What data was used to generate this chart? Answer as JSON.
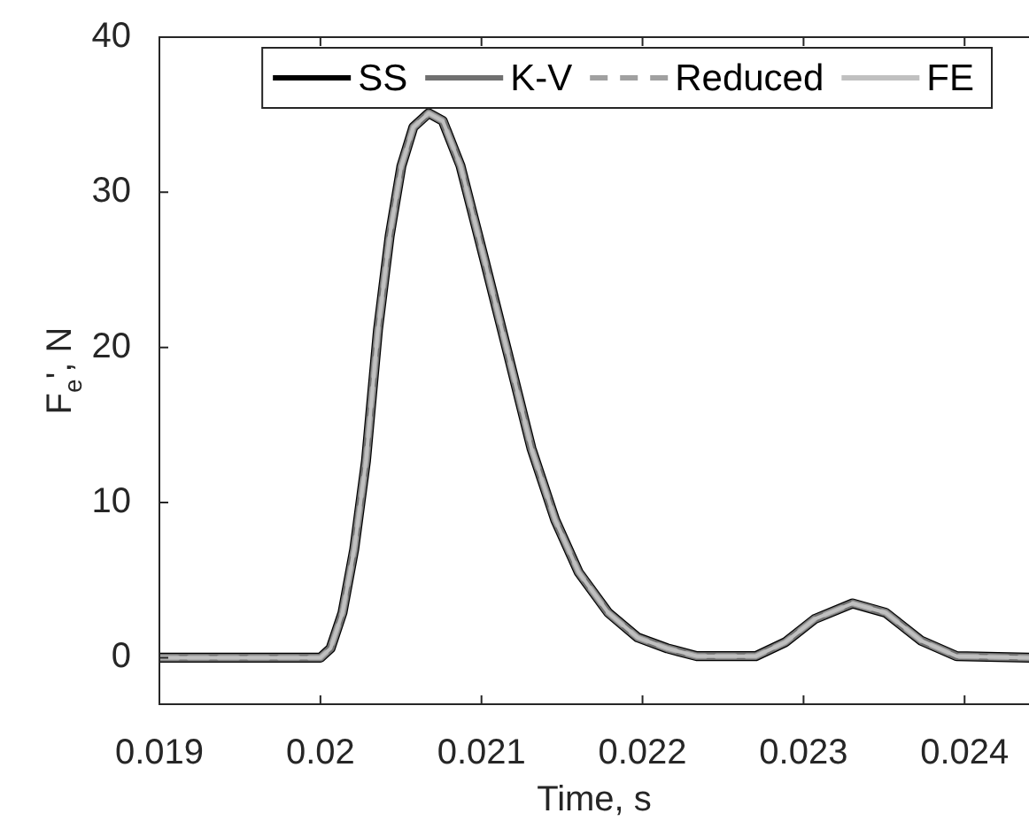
{
  "chart_data": {
    "type": "line",
    "xlabel": "Time, s",
    "ylabel": "F$_{e}$', N",
    "x": [
      0.019,
      0.02,
      0.020063,
      0.020137,
      0.02021,
      0.020283,
      0.020357,
      0.02043,
      0.020503,
      0.020577,
      0.020672,
      0.02076,
      0.02087,
      0.021017,
      0.021164,
      0.02131,
      0.021457,
      0.021604,
      0.021787,
      0.02197,
      0.022154,
      0.022337,
      0.022704,
      0.022887,
      0.02307,
      0.023305,
      0.02351,
      0.02373,
      0.02395,
      0.0244
    ],
    "series": [
      {
        "name": "SS",
        "color": "#000000",
        "values": [
          0,
          0,
          0.6,
          2.9,
          7.0,
          12.7,
          21.1,
          27.2,
          31.7,
          34.2,
          35.1,
          34.6,
          31.7,
          25.7,
          19.6,
          13.5,
          8.9,
          5.5,
          2.9,
          1.3,
          0.6,
          0.1,
          0.1,
          1.0,
          2.5,
          3.5,
          2.9,
          1.1,
          0.1,
          0
        ]
      },
      {
        "name": "K-V",
        "color": "#707070",
        "values": [
          0,
          0,
          0.6,
          2.9,
          7.0,
          12.7,
          21.1,
          27.2,
          31.7,
          34.2,
          35.1,
          34.6,
          31.7,
          25.7,
          19.6,
          13.5,
          8.9,
          5.5,
          2.9,
          1.3,
          0.6,
          0.1,
          0.1,
          1.0,
          2.5,
          3.5,
          2.9,
          1.1,
          0.1,
          0
        ]
      },
      {
        "name": "Reduced",
        "color": "#a0a0a0",
        "line_style": "dashed",
        "values": [
          0,
          0,
          0.6,
          2.9,
          7.0,
          12.7,
          21.1,
          27.2,
          31.7,
          34.2,
          35.1,
          34.6,
          31.7,
          25.7,
          19.6,
          13.5,
          8.9,
          5.5,
          2.9,
          1.3,
          0.6,
          0.1,
          0.1,
          1.0,
          2.5,
          3.5,
          2.9,
          1.1,
          0.1,
          0
        ]
      },
      {
        "name": "FE",
        "color": "#c0c0c0",
        "values": [
          0,
          0,
          0.6,
          2.9,
          7.0,
          12.7,
          21.1,
          27.2,
          31.7,
          34.2,
          35.1,
          34.6,
          31.7,
          25.7,
          19.6,
          13.5,
          8.9,
          5.5,
          2.9,
          1.3,
          0.6,
          0.1,
          0.1,
          1.0,
          2.5,
          3.5,
          2.9,
          1.1,
          0.1,
          0
        ]
      }
    ],
    "xlim": [
      0.019,
      0.0244
    ],
    "xticks": [
      0.019,
      0.02,
      0.021,
      0.022,
      0.023,
      0.024
    ],
    "ylim": [
      -3,
      40
    ],
    "yticks": [
      0,
      10,
      20,
      30,
      40
    ],
    "grid": false,
    "legend": "top",
    "marker": "none",
    "line_style": "solid"
  }
}
